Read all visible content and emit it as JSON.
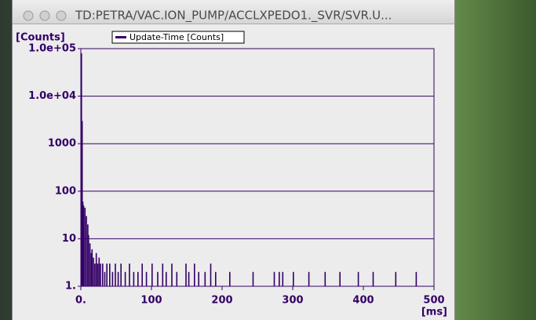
{
  "window": {
    "title": "TD:PETRA/VAC.ION_PUMP/ACCLXPEDO1._SVR/SVR.U..."
  },
  "chart_data": {
    "type": "bar",
    "y_label": "[Counts]",
    "x_label": "[ms]",
    "log_y": true,
    "grid": true,
    "legend": "top-left",
    "xlim": [
      0,
      500
    ],
    "xticks": [
      {
        "value": 0,
        "label": "0."
      },
      100,
      200,
      300,
      400,
      500
    ],
    "ylim": [
      1,
      100000
    ],
    "yticks": [
      {
        "value": 1,
        "label": "1."
      },
      10,
      100,
      1000,
      {
        "value": 10000,
        "label": "1.0e+04"
      },
      {
        "value": 100000,
        "label": "1.0e+05"
      }
    ],
    "series": [
      {
        "name": "Update-Time [Counts]",
        "color": "#330066",
        "x": [
          0,
          1,
          2,
          3,
          5,
          7,
          9,
          10,
          12,
          14,
          15,
          17,
          19,
          21,
          23,
          25,
          27,
          30,
          33,
          36,
          40,
          44,
          48,
          52,
          56,
          62,
          68,
          74,
          80,
          86,
          92,
          100,
          108,
          115,
          120,
          128,
          135,
          148,
          152,
          160,
          166,
          175,
          183,
          190,
          210,
          243,
          273,
          280,
          285,
          300,
          322,
          345,
          366,
          392,
          413,
          445,
          474
        ],
        "values": [
          80000,
          3000,
          60,
          50,
          45,
          30,
          20,
          12,
          8,
          5,
          6,
          4,
          3,
          5,
          3,
          4,
          3,
          3,
          2,
          3,
          3,
          2,
          3,
          2,
          3,
          2,
          3,
          2,
          2,
          3,
          2,
          3,
          2,
          3,
          2,
          3,
          2,
          3,
          2,
          3,
          2,
          2,
          3,
          2,
          2,
          2,
          2,
          2,
          2,
          2,
          2,
          2,
          2,
          2,
          2,
          2,
          2
        ]
      }
    ]
  }
}
